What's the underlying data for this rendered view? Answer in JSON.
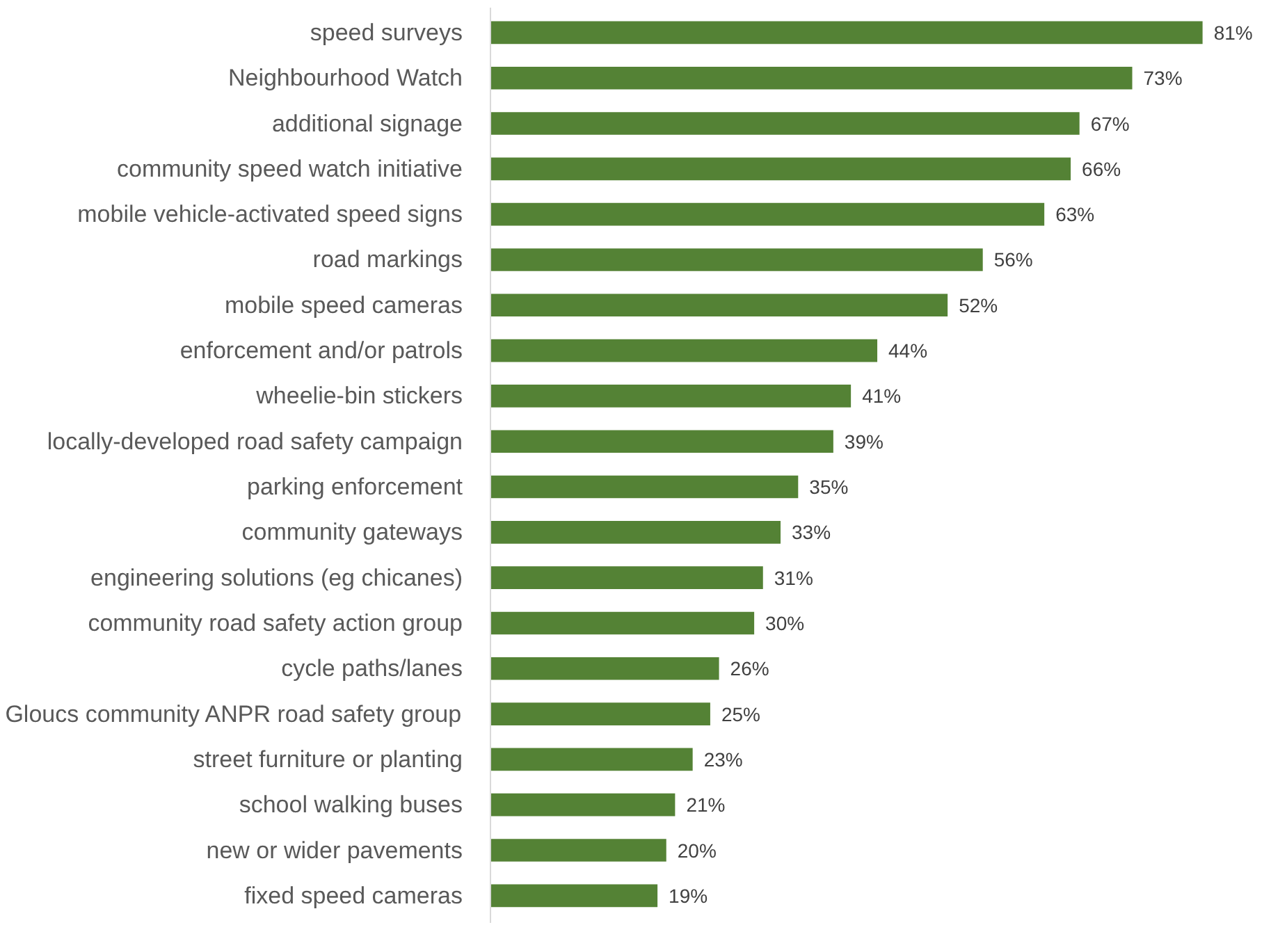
{
  "chart_data": {
    "type": "bar",
    "orientation": "horizontal",
    "color": "#548235",
    "categories": [
      "speed surveys",
      "Neighbourhood Watch",
      "additional signage",
      "community speed watch initiative",
      "mobile vehicle-activated speed signs",
      "road markings",
      "mobile speed cameras",
      "enforcement and/or patrols",
      "wheelie-bin stickers",
      "locally-developed road safety campaign",
      "parking enforcement",
      "community gateways",
      "engineering solutions (eg chicanes)",
      "community road safety action group",
      "cycle paths/lanes",
      "Gloucs community ANPR road safety group",
      "street furniture or planting",
      "school walking buses",
      "new or wider pavements",
      "fixed speed cameras"
    ],
    "values": [
      81,
      73,
      67,
      66,
      63,
      56,
      52,
      44,
      41,
      39,
      35,
      33,
      31,
      30,
      26,
      25,
      23,
      21,
      20,
      19
    ],
    "value_labels": [
      "81%",
      "73%",
      "67%",
      "66%",
      "63%",
      "56%",
      "52%",
      "44%",
      "41%",
      "39%",
      "35%",
      "33%",
      "31%",
      "30%",
      "26%",
      "25%",
      "23%",
      "21%",
      "20%",
      "19%"
    ]
  }
}
